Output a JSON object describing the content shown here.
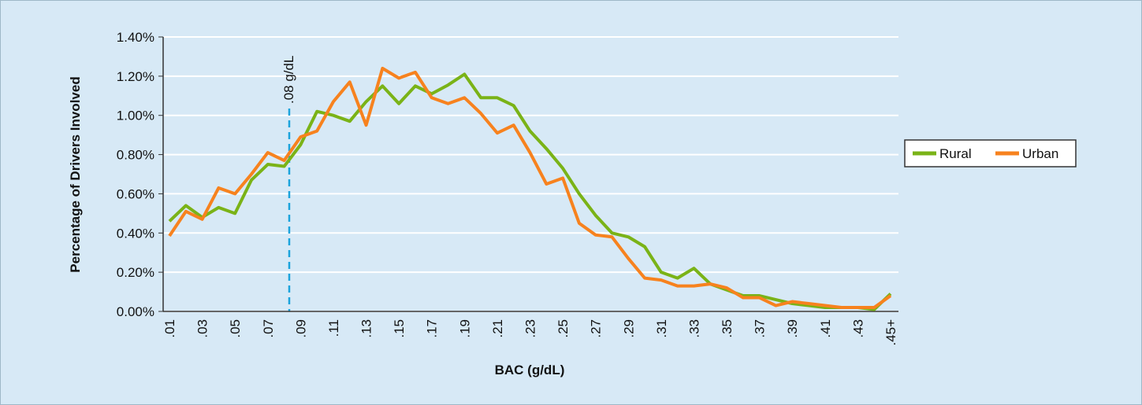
{
  "chart_data": {
    "type": "line",
    "x_label": "BAC (g/dL)",
    "y_label": "Percentage of Drivers Involved",
    "annotation": ".08 g/dL",
    "categories": [
      ".01",
      null,
      ".03",
      null,
      ".05",
      null,
      ".07",
      null,
      ".09",
      null,
      ".11",
      null,
      ".13",
      null,
      ".15",
      null,
      ".17",
      null,
      ".19",
      null,
      ".21",
      null,
      ".23",
      null,
      ".25",
      null,
      ".27",
      null,
      ".29",
      null,
      ".31",
      null,
      ".33",
      null,
      ".35",
      null,
      ".37",
      null,
      ".39",
      null,
      ".41",
      null,
      ".43",
      null,
      ".45+"
    ],
    "series": [
      {
        "name": "Rural",
        "color": "#7ab317",
        "values": [
          0.46,
          0.54,
          0.48,
          0.53,
          0.5,
          0.67,
          0.75,
          0.74,
          0.85,
          1.02,
          1.0,
          0.97,
          1.07,
          1.15,
          1.06,
          1.15,
          1.11,
          1.155,
          1.21,
          1.09,
          1.09,
          1.05,
          0.92,
          0.83,
          0.73,
          0.6,
          0.49,
          0.4,
          0.38,
          0.33,
          0.2,
          0.17,
          0.22,
          0.14,
          0.11,
          0.08,
          0.08,
          0.06,
          0.04,
          0.03,
          0.02,
          0.02,
          0.02,
          0.01,
          0.09
        ]
      },
      {
        "name": "Urban",
        "color": "#f7821e",
        "values": [
          0.385,
          0.51,
          0.47,
          0.63,
          0.6,
          0.7,
          0.81,
          0.77,
          0.89,
          0.92,
          1.07,
          1.17,
          0.95,
          1.24,
          1.19,
          1.22,
          1.09,
          1.06,
          1.09,
          1.01,
          0.91,
          0.95,
          0.81,
          0.65,
          0.68,
          0.45,
          0.39,
          0.38,
          0.27,
          0.17,
          0.16,
          0.13,
          0.13,
          0.14,
          0.12,
          0.07,
          0.07,
          0.03,
          0.05,
          0.04,
          0.03,
          0.02,
          0.02,
          0.02,
          0.08
        ]
      }
    ],
    "ylim": [
      0,
      1.4
    ],
    "yticks": [
      {
        "value": 0,
        "label": "0.00%"
      },
      {
        "value": 0.2,
        "label": "0.20%"
      },
      {
        "value": 0.4,
        "label": "0.40%"
      },
      {
        "value": 0.6,
        "label": "0.60%"
      },
      {
        "value": 0.8,
        "label": "0.80%"
      },
      {
        "value": 1.0,
        "label": "1.00%"
      },
      {
        "value": 1.2,
        "label": "1.20%"
      },
      {
        "value": 1.4,
        "label": "1.40%"
      }
    ],
    "grid": true,
    "legend": "right"
  }
}
